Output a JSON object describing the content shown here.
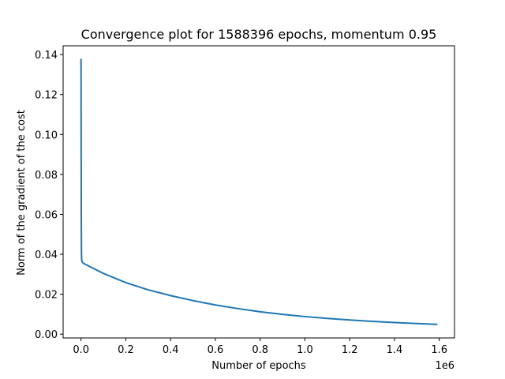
{
  "chart_data": {
    "type": "line",
    "title": "Convergence plot for 1588396 epochs, momentum 0.95",
    "xlabel": "Number of epochs",
    "ylabel": "Norm of the gradient of the cost",
    "x_offset_label": "1e6",
    "xlim": [
      -80000,
      1668000
    ],
    "ylim": [
      -0.0019,
      0.1444
    ],
    "x_ticks": [
      0,
      200000,
      400000,
      600000,
      800000,
      1000000,
      1200000,
      1400000,
      1600000
    ],
    "x_tick_labels": [
      "0.0",
      "0.2",
      "0.4",
      "0.6",
      "0.8",
      "1.0",
      "1.2",
      "1.4",
      "1.6"
    ],
    "y_ticks": [
      0.0,
      0.02,
      0.04,
      0.06,
      0.08,
      0.1,
      0.12,
      0.14
    ],
    "y_tick_labels": [
      "0.00",
      "0.02",
      "0.04",
      "0.06",
      "0.08",
      "0.10",
      "0.12",
      "0.14"
    ],
    "grid": false,
    "legend": "none",
    "series": [
      {
        "color": "#1f77b4",
        "x": [
          0,
          1000,
          2000,
          3000,
          5000,
          10000,
          50000,
          100000,
          200000,
          300000,
          400000,
          500000,
          600000,
          700000,
          800000,
          900000,
          1000000,
          1100000,
          1200000,
          1300000,
          1400000,
          1500000,
          1588396
        ],
        "y": [
          0.1375,
          0.06,
          0.04,
          0.037,
          0.0362,
          0.0355,
          0.0332,
          0.0304,
          0.0258,
          0.0222,
          0.0193,
          0.0168,
          0.0146,
          0.0128,
          0.0112,
          0.0099,
          0.0088,
          0.0079,
          0.0071,
          0.0064,
          0.0058,
          0.0053,
          0.0049
        ]
      }
    ]
  }
}
